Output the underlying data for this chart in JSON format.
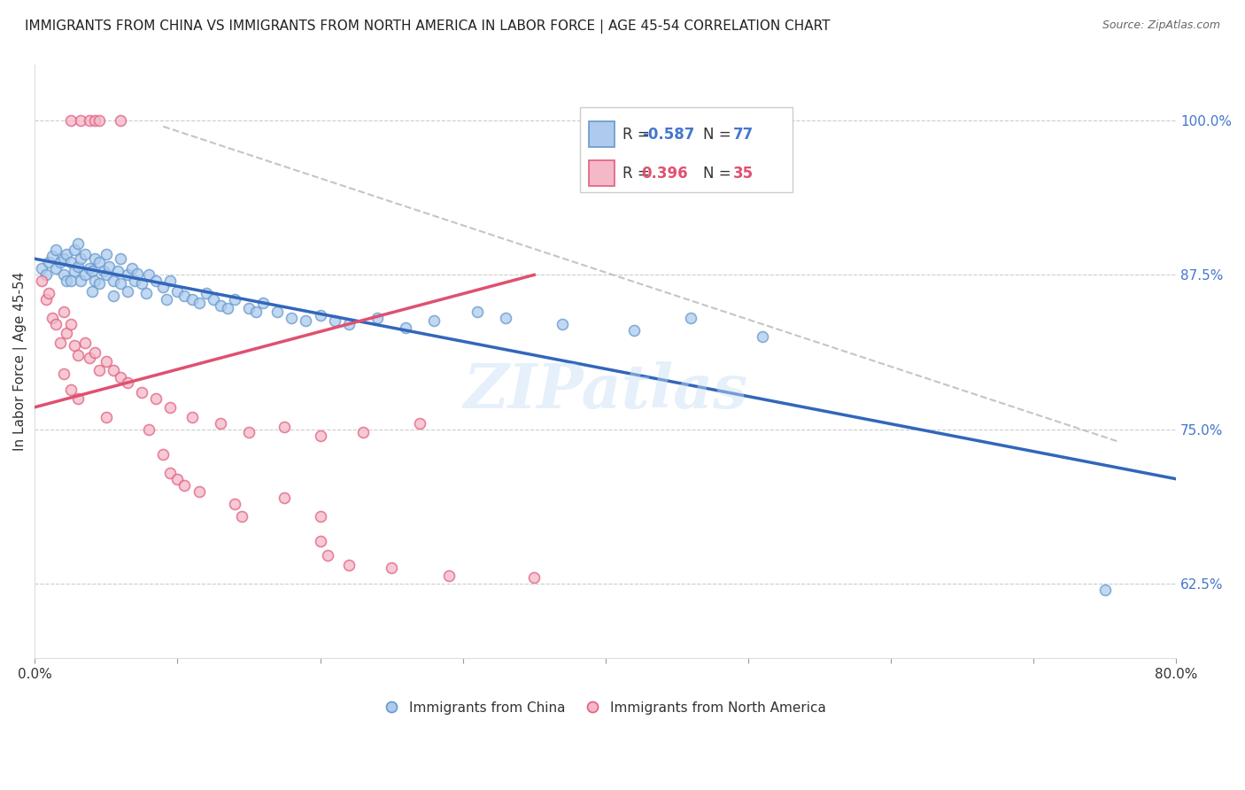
{
  "title": "IMMIGRANTS FROM CHINA VS IMMIGRANTS FROM NORTH AMERICA IN LABOR FORCE | AGE 45-54 CORRELATION CHART",
  "source": "Source: ZipAtlas.com",
  "ylabel": "In Labor Force | Age 45-54",
  "ytick_labels": [
    "100.0%",
    "87.5%",
    "75.0%",
    "62.5%"
  ],
  "ytick_values": [
    1.0,
    0.875,
    0.75,
    0.625
  ],
  "xlim": [
    0.0,
    0.8
  ],
  "ylim": [
    0.565,
    1.045
  ],
  "china_color": "#aecbee",
  "china_edge": "#6699cc",
  "na_color": "#f5b8c8",
  "na_edge": "#e06080",
  "trend_china_color": "#3366bb",
  "trend_na_color": "#e05070",
  "trend_dashed_color": "#bbbbbb",
  "china_scatter_x": [
    0.005,
    0.008,
    0.01,
    0.012,
    0.015,
    0.015,
    0.018,
    0.02,
    0.02,
    0.022,
    0.022,
    0.025,
    0.025,
    0.028,
    0.028,
    0.03,
    0.03,
    0.032,
    0.032,
    0.035,
    0.035,
    0.038,
    0.04,
    0.04,
    0.042,
    0.042,
    0.045,
    0.045,
    0.048,
    0.05,
    0.05,
    0.052,
    0.055,
    0.055,
    0.058,
    0.06,
    0.06,
    0.065,
    0.065,
    0.068,
    0.07,
    0.072,
    0.075,
    0.078,
    0.08,
    0.085,
    0.09,
    0.092,
    0.095,
    0.1,
    0.105,
    0.11,
    0.115,
    0.12,
    0.125,
    0.13,
    0.135,
    0.14,
    0.15,
    0.155,
    0.16,
    0.17,
    0.18,
    0.19,
    0.2,
    0.21,
    0.22,
    0.24,
    0.26,
    0.28,
    0.31,
    0.33,
    0.37,
    0.42,
    0.46,
    0.51,
    0.75
  ],
  "china_scatter_y": [
    0.88,
    0.875,
    0.885,
    0.89,
    0.895,
    0.88,
    0.885,
    0.888,
    0.875,
    0.892,
    0.87,
    0.885,
    0.87,
    0.895,
    0.878,
    0.9,
    0.882,
    0.888,
    0.87,
    0.892,
    0.875,
    0.88,
    0.878,
    0.862,
    0.888,
    0.87,
    0.885,
    0.868,
    0.878,
    0.892,
    0.875,
    0.882,
    0.87,
    0.858,
    0.878,
    0.888,
    0.868,
    0.875,
    0.862,
    0.88,
    0.87,
    0.876,
    0.868,
    0.86,
    0.875,
    0.87,
    0.865,
    0.855,
    0.87,
    0.862,
    0.858,
    0.855,
    0.852,
    0.86,
    0.855,
    0.85,
    0.848,
    0.855,
    0.848,
    0.845,
    0.852,
    0.845,
    0.84,
    0.838,
    0.842,
    0.838,
    0.835,
    0.84,
    0.832,
    0.838,
    0.845,
    0.84,
    0.835,
    0.83,
    0.84,
    0.825,
    0.62
  ],
  "na_scatter_x": [
    0.005,
    0.008,
    0.01,
    0.012,
    0.015,
    0.018,
    0.02,
    0.022,
    0.025,
    0.028,
    0.03,
    0.035,
    0.038,
    0.042,
    0.045,
    0.05,
    0.055,
    0.06,
    0.065,
    0.075,
    0.085,
    0.095,
    0.11,
    0.13,
    0.15,
    0.175,
    0.2,
    0.23,
    0.27
  ],
  "na_scatter_y": [
    0.87,
    0.855,
    0.86,
    0.84,
    0.835,
    0.82,
    0.845,
    0.828,
    0.835,
    0.818,
    0.81,
    0.82,
    0.808,
    0.812,
    0.798,
    0.805,
    0.798,
    0.792,
    0.788,
    0.78,
    0.775,
    0.768,
    0.76,
    0.755,
    0.748,
    0.752,
    0.745,
    0.748,
    0.755
  ],
  "na_low_x": [
    0.02,
    0.025,
    0.03,
    0.05,
    0.08,
    0.09,
    0.095,
    0.1,
    0.105,
    0.115,
    0.14,
    0.145,
    0.175,
    0.2,
    0.2,
    0.205,
    0.22,
    0.25,
    0.29,
    0.35
  ],
  "na_low_y": [
    0.795,
    0.782,
    0.775,
    0.76,
    0.75,
    0.73,
    0.715,
    0.71,
    0.705,
    0.7,
    0.69,
    0.68,
    0.695,
    0.68,
    0.66,
    0.648,
    0.64,
    0.638,
    0.632,
    0.63
  ],
  "na_top_x": [
    0.025,
    0.032,
    0.038,
    0.042,
    0.045,
    0.06
  ],
  "na_top_y": [
    1.0,
    1.0,
    1.0,
    1.0,
    1.0,
    1.0
  ],
  "china_line_x": [
    0.0,
    0.8
  ],
  "china_line_y": [
    0.888,
    0.71
  ],
  "na_line_x": [
    0.0,
    0.35
  ],
  "na_line_y": [
    0.768,
    0.875
  ],
  "dash_line_x": [
    0.09,
    0.76
  ],
  "dash_line_y": [
    0.995,
    0.74
  ],
  "marker_size": 75,
  "marker_linewidth": 1.2,
  "title_fontsize": 11
}
